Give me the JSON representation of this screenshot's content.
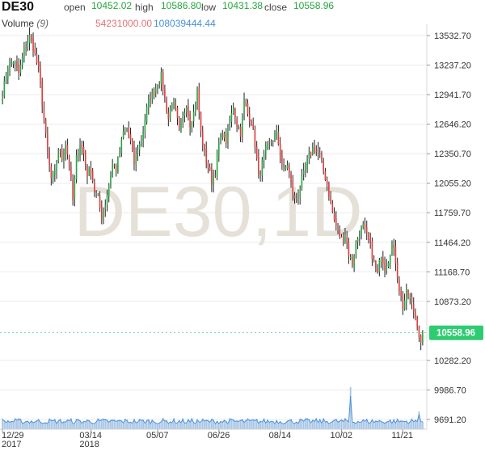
{
  "header": {
    "symbol": "DE30",
    "open_label": "open",
    "open_value": "10452.02",
    "high_label": "high",
    "high_value": "10586.80",
    "low_label": "low",
    "low_value": "10431.38",
    "close_label": "close",
    "close_value": "10558.96",
    "volume_label": "Volume",
    "volume_period": "(9)",
    "volume_value": "54231000.00",
    "volume_ma_value": "108039444.44"
  },
  "watermark": "DE30,1D",
  "last_price_tag": "10558.96",
  "colors": {
    "up": "#26a541",
    "down": "#e03c3c",
    "wick": "#222222",
    "volume": "#a9c6e6",
    "volume_line": "#4a90d9",
    "grid": "#ebebeb",
    "price_tag": "#2ecc71",
    "watermark": "#e4dfd6"
  },
  "chart_data": {
    "type": "candlestick",
    "title": "DE30",
    "y_ticks": [
      "13532.70",
      "13237.20",
      "12941.70",
      "12646.20",
      "12350.70",
      "12055.20",
      "11759.70",
      "11464.20",
      "11168.70",
      "10873.20",
      "10282.20",
      "9986.70",
      "9691.20"
    ],
    "ylim": [
      9691.2,
      13600
    ],
    "x_ticks": [
      {
        "label": "12/29",
        "sub": "2017",
        "index": 0
      },
      {
        "label": "03/14",
        "sub": "2018",
        "index": 49
      },
      {
        "label": "05/07",
        "sub": "",
        "index": 86
      },
      {
        "label": "06/26",
        "sub": "",
        "index": 120
      },
      {
        "label": "08/14",
        "sub": "",
        "index": 154
      },
      {
        "label": "10/02",
        "sub": "",
        "index": 188
      },
      {
        "label": "11/21",
        "sub": "",
        "index": 222
      }
    ],
    "anchors": [
      [
        0,
        12950
      ],
      [
        3,
        13230
      ],
      [
        6,
        13280
      ],
      [
        9,
        13150
      ],
      [
        12,
        13380
      ],
      [
        15,
        13520
      ],
      [
        17,
        13420
      ],
      [
        20,
        13180
      ],
      [
        22,
        12860
      ],
      [
        25,
        12350
      ],
      [
        27,
        12100
      ],
      [
        29,
        12150
      ],
      [
        31,
        12400
      ],
      [
        33,
        12300
      ],
      [
        35,
        12450
      ],
      [
        37,
        12250
      ],
      [
        39,
        11880
      ],
      [
        41,
        12300
      ],
      [
        43,
        12450
      ],
      [
        45,
        12350
      ],
      [
        47,
        12150
      ],
      [
        49,
        12200
      ],
      [
        51,
        11980
      ],
      [
        53,
        11900
      ],
      [
        55,
        11720
      ],
      [
        57,
        11850
      ],
      [
        59,
        12050
      ],
      [
        61,
        12250
      ],
      [
        63,
        12200
      ],
      [
        65,
        12350
      ],
      [
        67,
        12560
      ],
      [
        69,
        12600
      ],
      [
        71,
        12460
      ],
      [
        73,
        12250
      ],
      [
        75,
        12400
      ],
      [
        77,
        12480
      ],
      [
        80,
        12800
      ],
      [
        82,
        12920
      ],
      [
        84,
        12980
      ],
      [
        86,
        13050
      ],
      [
        88,
        13120
      ],
      [
        90,
        12900
      ],
      [
        92,
        12700
      ],
      [
        94,
        12880
      ],
      [
        96,
        12780
      ],
      [
        98,
        12560
      ],
      [
        100,
        12700
      ],
      [
        102,
        12860
      ],
      [
        104,
        12650
      ],
      [
        106,
        12760
      ],
      [
        108,
        12980
      ],
      [
        110,
        12560
      ],
      [
        112,
        12350
      ],
      [
        114,
        12220
      ],
      [
        116,
        12080
      ],
      [
        118,
        12180
      ],
      [
        120,
        12450
      ],
      [
        122,
        12560
      ],
      [
        124,
        12480
      ],
      [
        126,
        12650
      ],
      [
        128,
        12830
      ],
      [
        130,
        12650
      ],
      [
        132,
        12560
      ],
      [
        134,
        12880
      ],
      [
        136,
        12750
      ],
      [
        138,
        12680
      ],
      [
        140,
        12450
      ],
      [
        142,
        12120
      ],
      [
        144,
        12250
      ],
      [
        146,
        12380
      ],
      [
        148,
        12450
      ],
      [
        150,
        12500
      ],
      [
        152,
        12550
      ],
      [
        154,
        12350
      ],
      [
        156,
        12180
      ],
      [
        158,
        12250
      ],
      [
        160,
        12050
      ],
      [
        162,
        11880
      ],
      [
        164,
        11950
      ],
      [
        166,
        12080
      ],
      [
        168,
        12200
      ],
      [
        170,
        12320
      ],
      [
        172,
        12400
      ],
      [
        174,
        12380
      ],
      [
        176,
        12330
      ],
      [
        178,
        12180
      ],
      [
        180,
        12050
      ],
      [
        182,
        11850
      ],
      [
        184,
        11680
      ],
      [
        186,
        11580
      ],
      [
        188,
        11500
      ],
      [
        190,
        11550
      ],
      [
        192,
        11350
      ],
      [
        194,
        11250
      ],
      [
        196,
        11450
      ],
      [
        198,
        11560
      ],
      [
        200,
        11620
      ],
      [
        202,
        11520
      ],
      [
        204,
        11420
      ],
      [
        206,
        11250
      ],
      [
        208,
        11150
      ],
      [
        210,
        11350
      ],
      [
        212,
        11220
      ],
      [
        214,
        11300
      ],
      [
        216,
        11450
      ],
      [
        218,
        11280
      ],
      [
        220,
        11000
      ],
      [
        222,
        10820
      ],
      [
        224,
        10950
      ],
      [
        226,
        10900
      ],
      [
        228,
        10780
      ],
      [
        230,
        10650
      ],
      [
        232,
        10431
      ],
      [
        233,
        10559
      ]
    ],
    "volume_spike_index": 193
  }
}
